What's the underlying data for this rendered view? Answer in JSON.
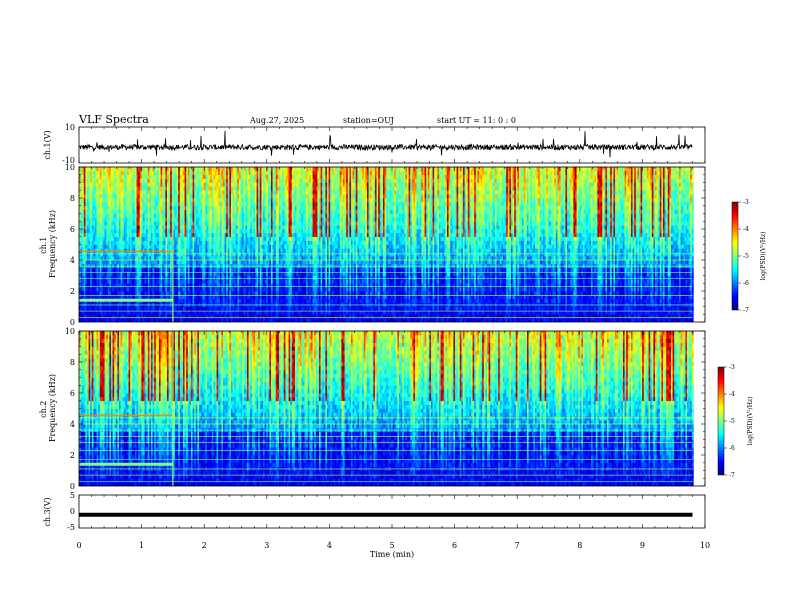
{
  "header": {
    "title": "VLF Spectra",
    "date": "Aug.27, 2025",
    "station": "station=OUJ",
    "start_ut": "start  UT =   11: 0  : 0"
  },
  "colors": {
    "jet_stops": [
      "#00007f",
      "#0000ff",
      "#0080ff",
      "#00ffff",
      "#80ff80",
      "#ffff00",
      "#ff8000",
      "#ff0000",
      "#7f0000"
    ],
    "trace": "#000000",
    "axis": "#000000"
  },
  "chart_data": [
    {
      "type": "line",
      "ylabel": "ch.1(V)",
      "xlim": [
        0,
        10
      ],
      "ylim": [
        -10,
        10
      ],
      "yticks": [
        "10",
        "-10"
      ],
      "series": [
        {
          "baseline_v": -1.2,
          "noise_v": 1.5
        }
      ]
    },
    {
      "type": "heatmap",
      "ylabel": "ch.1\nFrequency (kHz)",
      "xlim": [
        0,
        10
      ],
      "ylim": [
        0,
        10
      ],
      "yticks": [
        "0",
        "2",
        "4",
        "6",
        "8",
        "10"
      ],
      "data_end_min": 9.8,
      "regime_change_min": 1.5,
      "colorbar": {
        "label": "log(PSD)(V²/Hz)",
        "range": [
          -7,
          -3
        ],
        "ticks": [
          "-3",
          "-4",
          "-5",
          "-6",
          "-7"
        ]
      }
    },
    {
      "type": "heatmap",
      "ylabel": "ch.2\nFrequency (kHz)",
      "xlim": [
        0,
        10
      ],
      "ylim": [
        0,
        10
      ],
      "yticks": [
        "0",
        "2",
        "4",
        "6",
        "8",
        "10"
      ],
      "data_end_min": 9.8,
      "regime_change_min": 1.5,
      "colorbar": {
        "label": "log(PSD)(V²/Hz)",
        "range": [
          -7,
          -3
        ],
        "ticks": [
          "-3",
          "-4",
          "-5",
          "-6",
          "-7"
        ]
      }
    },
    {
      "type": "line",
      "ylabel": "ch.3(V)",
      "xlim": [
        0,
        10
      ],
      "ylim": [
        -5,
        5
      ],
      "yticks": [
        "5",
        "0",
        "-5"
      ],
      "series": [
        {
          "constant_v": -1.0
        }
      ]
    }
  ],
  "xaxis": {
    "label": "Time (min)",
    "ticks": [
      "0",
      "1",
      "2",
      "3",
      "4",
      "5",
      "6",
      "7",
      "8",
      "9",
      "10"
    ]
  }
}
